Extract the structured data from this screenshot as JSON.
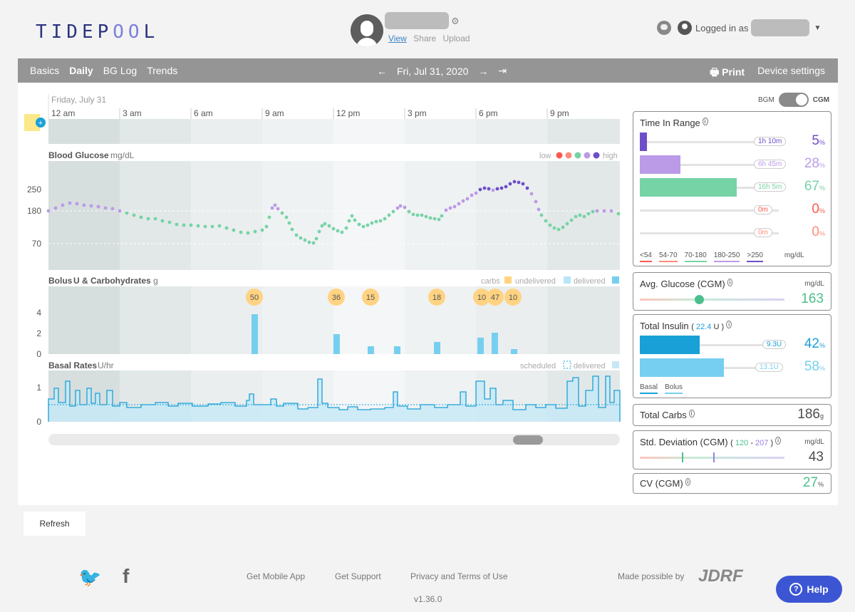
{
  "header": {
    "logo": "TIDEPOOL",
    "patient_links": [
      "View",
      "Share",
      "Upload"
    ],
    "logged_in_as": "Logged in as"
  },
  "nav": {
    "tabs": [
      "Basics",
      "Daily",
      "BG Log",
      "Trends"
    ],
    "active_tab": "Daily",
    "date": "Fri, Jul 31, 2020",
    "print": "Print",
    "device_settings": "Device settings"
  },
  "chart_labels": {
    "day": "Friday, July 31",
    "times": [
      "12 am",
      "3 am",
      "6 am",
      "9 am",
      "12 pm",
      "3 pm",
      "6 pm",
      "9 pm"
    ],
    "bg_title": "Blood Glucose",
    "bg_units": "mg/dL",
    "bg_low": "low",
    "bg_high": "high",
    "bg_ticks": [
      "250",
      "180",
      "70"
    ],
    "bolus_title": "Bolus",
    "bolus_u": "U & Carbohydrates",
    "bolus_g": "g",
    "bolus_legend": [
      "carbs",
      "undelivered",
      "delivered"
    ],
    "bolus_ticks": [
      "4",
      "2",
      "0"
    ],
    "basal_title": "Basal Rates",
    "basal_units": "U/hr",
    "basal_legend": [
      "scheduled",
      "delivered"
    ],
    "basal_ticks": [
      "1",
      "0"
    ]
  },
  "carbs": [
    "50",
    "36",
    "15",
    "18",
    "10",
    "47",
    "10"
  ],
  "stats": {
    "toggle_bgm": "BGM",
    "toggle_cgm": "CGM",
    "tir": {
      "title": "Time In Range",
      "rows": [
        {
          "time": "1h 10m",
          "pct": "5",
          "color": "#6f4ec9",
          "frac": 0.05
        },
        {
          "time": "6h 45m",
          "pct": "28",
          "color": "#bb9ae7",
          "frac": 0.28
        },
        {
          "time": "16h 5m",
          "pct": "67",
          "color": "#76d3a6",
          "frac": 0.67
        },
        {
          "time": "0m",
          "pct": "0",
          "color": "#fb5951",
          "frac": 0
        },
        {
          "time": "0m",
          "pct": "0",
          "color": "#ff8b7c",
          "frac": 0
        }
      ],
      "legend": [
        "<54",
        "54-70",
        "70-180",
        "180-250",
        ">250"
      ],
      "units": "mg/dL"
    },
    "avg": {
      "title": "Avg. Glucose (CGM)",
      "units": "mg/dL",
      "value": "163"
    },
    "insulin": {
      "title": "Total Insulin",
      "total": "22.4",
      "total_unit": "U",
      "rows": [
        {
          "value": "9.3U",
          "pct": "42",
          "color": "#19a0d7"
        },
        {
          "value": "13.1U",
          "pct": "58",
          "color": "#76cff0"
        }
      ],
      "legend": [
        "Basal",
        "Bolus"
      ]
    },
    "carbs": {
      "title": "Total Carbs",
      "value": "186",
      "unit": "g"
    },
    "sd": {
      "title": "Std. Deviation (CGM)",
      "range_lo": "120",
      "range_hi": "207",
      "units": "mg/dL",
      "value": "43"
    },
    "cv": {
      "title": "CV (CGM)",
      "value": "27"
    }
  },
  "footer": {
    "refresh": "Refresh",
    "links": [
      "Get Mobile App",
      "Get Support",
      "Privacy and Terms of Use"
    ],
    "version": "v1.36.0",
    "made_possible": "Made possible by",
    "sponsor": "JDRF",
    "help": "Help"
  }
}
